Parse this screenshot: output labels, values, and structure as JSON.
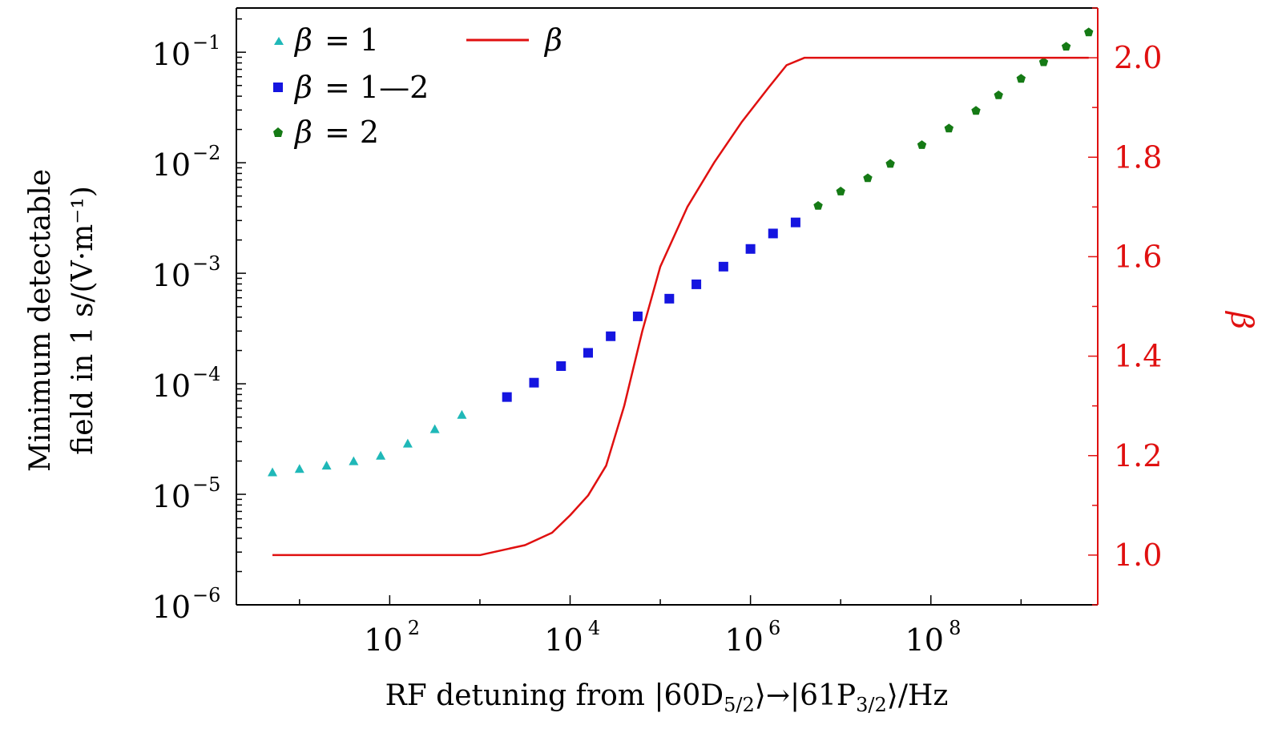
{
  "chart_data": {
    "type": "scatter",
    "xlabel": "RF detuning from |60D5/2⟩→|61P3/2⟩/Hz",
    "xlabel_parts": {
      "prefix": "RF detuning from |60D",
      "sub1": "5/2",
      "mid": "⟩→|61P",
      "sub2": "3/2",
      "suffix": "⟩/Hz"
    },
    "ylabel_left": [
      "Minimum detectable",
      "field in 1 s/(V·m⁻¹)"
    ],
    "ylabel_right": "β",
    "x_log_range": [
      0.3,
      9.85
    ],
    "y_left_log_range": [
      -6,
      -0.6
    ],
    "y_right_range": [
      0.9,
      2.1
    ],
    "x_ticks": [
      {
        "value": 2,
        "label": "10",
        "exp": "2"
      },
      {
        "value": 4,
        "label": "10",
        "exp": "4"
      },
      {
        "value": 6,
        "label": "10",
        "exp": "6"
      },
      {
        "value": 8,
        "label": "10",
        "exp": "8"
      }
    ],
    "y_left_ticks": [
      {
        "value": -1,
        "label": "10",
        "exp": "−1"
      },
      {
        "value": -2,
        "label": "10",
        "exp": "−2"
      },
      {
        "value": -3,
        "label": "10",
        "exp": "−3"
      },
      {
        "value": -4,
        "label": "10",
        "exp": "−4"
      },
      {
        "value": -5,
        "label": "10",
        "exp": "−5"
      },
      {
        "value": -6,
        "label": "10",
        "exp": "−6"
      }
    ],
    "y_right_ticks": [
      {
        "value": 1.0,
        "label": "1.0"
      },
      {
        "value": 1.2,
        "label": "1.2"
      },
      {
        "value": 1.4,
        "label": "1.4"
      },
      {
        "value": 1.6,
        "label": "1.6"
      },
      {
        "value": 1.8,
        "label": "1.8"
      },
      {
        "value": 2.0,
        "label": "2.0"
      }
    ],
    "series": [
      {
        "name": "β = 1",
        "legend_lhs": "β",
        "legend_rhs": "= 1",
        "marker": "triangle",
        "color": "#1fb8b8",
        "log10_x": [
          0.7,
          1.0,
          1.3,
          1.6,
          1.9,
          2.2,
          2.5,
          2.8
        ],
        "log10_y": [
          -4.8,
          -4.77,
          -4.74,
          -4.7,
          -4.65,
          -4.54,
          -4.41,
          -4.28
        ]
      },
      {
        "name": "β = 1—2",
        "legend_lhs": "β",
        "legend_rhs": "= 1—2",
        "marker": "square",
        "color": "#1515e0",
        "log10_x": [
          3.3,
          3.6,
          3.9,
          4.2,
          4.45,
          4.75,
          5.1,
          5.4,
          5.7,
          6.0,
          6.25,
          6.5
        ],
        "log10_y": [
          -4.12,
          -3.99,
          -3.84,
          -3.72,
          -3.57,
          -3.39,
          -3.23,
          -3.1,
          -2.94,
          -2.78,
          -2.64,
          -2.54
        ]
      },
      {
        "name": "β = 2",
        "legend_lhs": "β",
        "legend_rhs": "= 2",
        "marker": "pentagon",
        "color": "#157a15",
        "log10_x": [
          6.75,
          7.0,
          7.3,
          7.55,
          7.9,
          8.2,
          8.5,
          8.75,
          9.0,
          9.25,
          9.5,
          9.75
        ],
        "log10_y": [
          -2.39,
          -2.26,
          -2.14,
          -2.01,
          -1.84,
          -1.69,
          -1.53,
          -1.39,
          -1.24,
          -1.09,
          -0.95,
          -0.82
        ]
      },
      {
        "name": "β",
        "legend_lhs": "β",
        "legend_rhs": "",
        "marker": "line",
        "color": "#e01010",
        "axis": "right",
        "log10_x": [
          0.7,
          1.5,
          2.5,
          3.0,
          3.5,
          3.8,
          4.0,
          4.2,
          4.4,
          4.6,
          4.8,
          5.0,
          5.3,
          5.6,
          5.9,
          6.2,
          6.4,
          6.6,
          9.75
        ],
        "values": [
          1.0,
          1.0,
          1.0,
          1.0,
          1.02,
          1.045,
          1.08,
          1.12,
          1.18,
          1.3,
          1.45,
          1.58,
          1.7,
          1.79,
          1.87,
          1.94,
          1.985,
          2.0,
          2.0
        ]
      }
    ],
    "colors": {
      "axis": "#000000",
      "right_axis": "#e01010"
    }
  }
}
